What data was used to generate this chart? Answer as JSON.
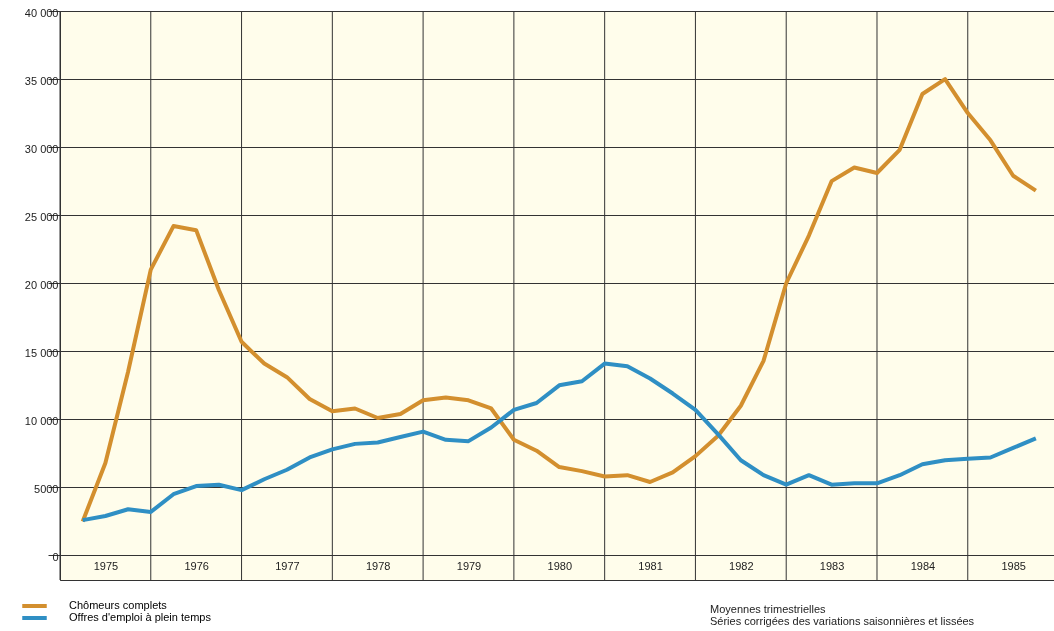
{
  "chart_data": {
    "type": "line",
    "x": [
      1975.25,
      1975.5,
      1975.75,
      1976.0,
      1976.25,
      1976.5,
      1976.75,
      1977.0,
      1977.25,
      1977.5,
      1977.75,
      1978.0,
      1978.25,
      1978.5,
      1978.75,
      1979.0,
      1979.25,
      1979.5,
      1979.75,
      1980.0,
      1980.25,
      1980.5,
      1980.75,
      1981.0,
      1981.25,
      1981.5,
      1981.75,
      1982.0,
      1982.25,
      1982.5,
      1982.75,
      1983.0,
      1983.25,
      1983.5,
      1983.75,
      1984.0,
      1984.25,
      1984.5,
      1984.75,
      1985.0,
      1985.25,
      1985.5,
      1985.75
    ],
    "series": [
      {
        "name": "Chômeurs complets",
        "color": "#d38f2e",
        "values": [
          2500,
          6800,
          13500,
          21000,
          24200,
          23900,
          19500,
          15700,
          14100,
          13100,
          11500,
          10600,
          10800,
          10100,
          10400,
          11400,
          11600,
          11400,
          10800,
          8500,
          7700,
          6500,
          6200,
          5800,
          5900,
          5400,
          6100,
          7300,
          8800,
          11000,
          14300,
          20000,
          23500,
          27500,
          28500,
          28100,
          29800,
          33900,
          35000,
          32500,
          30500,
          27900,
          26800
        ]
      },
      {
        "name": "Offres d'emploi à plein temps",
        "color": "#2f8fc4",
        "values": [
          2600,
          2900,
          3400,
          3200,
          4500,
          5100,
          5200,
          4800,
          5600,
          6300,
          7200,
          7800,
          8200,
          8300,
          8700,
          9100,
          8500,
          8400,
          9400,
          10700,
          11200,
          12500,
          12800,
          14100,
          13900,
          13000,
          11900,
          10700,
          8900,
          7000,
          5900,
          5200,
          5900,
          5200,
          5300,
          5300,
          5900,
          6700,
          7000,
          7100,
          7200,
          7900,
          8600
        ]
      }
    ],
    "xlim": [
      1975,
      1985.95
    ],
    "xticks": [
      {
        "value": 1975,
        "label": null
      },
      {
        "value": 1976,
        "label": null
      },
      {
        "value": 1977,
        "label": null
      },
      {
        "value": 1978,
        "label": null
      },
      {
        "value": 1979,
        "label": null
      },
      {
        "value": 1980,
        "label": null
      },
      {
        "value": 1981,
        "label": null
      },
      {
        "value": 1982,
        "label": null
      },
      {
        "value": 1983,
        "label": null
      },
      {
        "value": 1984,
        "label": null
      },
      {
        "value": 1985,
        "label": null
      },
      {
        "value": 1975.5,
        "label": "1975"
      },
      {
        "value": 1976.5,
        "label": "1976"
      },
      {
        "value": 1977.5,
        "label": "1977"
      },
      {
        "value": 1978.5,
        "label": "1978"
      },
      {
        "value": 1979.5,
        "label": "1979"
      },
      {
        "value": 1980.5,
        "label": "1980"
      },
      {
        "value": 1981.5,
        "label": "1981"
      },
      {
        "value": 1982.5,
        "label": "1982"
      },
      {
        "value": 1983.5,
        "label": "1983"
      },
      {
        "value": 1984.5,
        "label": "1984"
      },
      {
        "value": 1985.5,
        "label": "1985"
      }
    ],
    "ylim": [
      -1800,
      40000
    ],
    "yticks": [
      0,
      5000,
      {
        "value": 10000,
        "label": "10 000"
      },
      {
        "value": 15000,
        "label": "15 000"
      },
      {
        "value": 20000,
        "label": "20 000"
      },
      {
        "value": 25000,
        "label": "25 000"
      },
      {
        "value": 30000,
        "label": "30 000"
      },
      {
        "value": 35000,
        "label": "35 000"
      },
      {
        "value": 40000,
        "label": "40 000"
      }
    ],
    "grid": true,
    "legend": "bottom left",
    "line_style": "solid",
    "marker": "none",
    "annotations": [
      "Moyennes trimestrielles",
      "Séries corrigées des variations saisonnières et lissées"
    ]
  }
}
